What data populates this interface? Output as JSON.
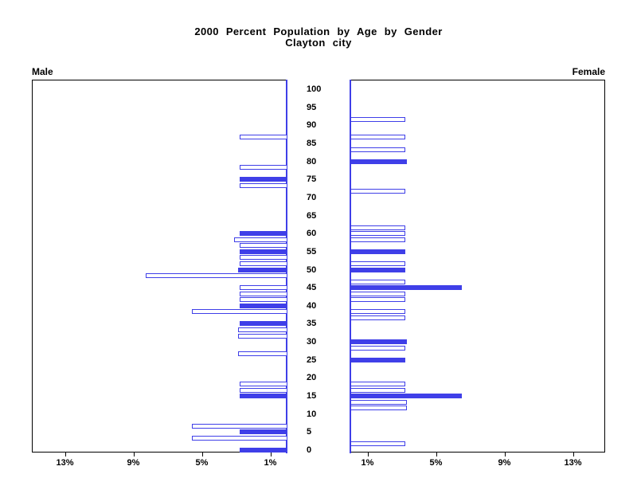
{
  "page": {
    "title": "2000 Percent Population by Age by Gender",
    "subtitle": "Clayton city",
    "left_panel_label": "Male",
    "right_panel_label": "Female"
  },
  "colors": {
    "bar_blue": "#3f3fe8",
    "axis_black": "#000000",
    "background": "#ffffff"
  },
  "chart_data": {
    "type": "bar",
    "variant": "population-pyramid",
    "title": "2000 Percent Population by Age by Gender",
    "subtitle": "Clayton city",
    "left_side_label": "Male",
    "right_side_label": "Female",
    "age_axis": {
      "position": "center",
      "ticks": [
        0,
        5,
        10,
        15,
        20,
        25,
        30,
        35,
        40,
        45,
        50,
        55,
        60,
        65,
        70,
        75,
        80,
        85,
        90,
        95,
        100
      ]
    },
    "pct_axis": {
      "male_ticks": [
        {
          "label": "13%",
          "value": 13
        },
        {
          "label": "9%",
          "value": 9
        },
        {
          "label": "5%",
          "value": 5
        },
        {
          "label": "1%",
          "value": 1
        }
      ],
      "female_ticks": [
        {
          "label": "1%",
          "value": 1
        },
        {
          "label": "5%",
          "value": 5
        },
        {
          "label": "9%",
          "value": 9
        },
        {
          "label": "13%",
          "value": 13
        }
      ],
      "male_direction": "leftward",
      "female_direction": "rightward",
      "max_pct": 14.8,
      "grid": false,
      "legend": "none visible"
    },
    "bar_styles": [
      "filled",
      "outline"
    ],
    "bars": {
      "male": [
        {
          "age": 85,
          "slot": "t",
          "style": "outline",
          "pct": 2.8
        },
        {
          "age": 80,
          "slot": "b",
          "style": "outline",
          "pct": 2.8
        },
        {
          "age": 75,
          "slot": "m",
          "style": "filled",
          "pct": 2.8
        },
        {
          "age": 75,
          "slot": "b",
          "style": "outline",
          "pct": 2.8
        },
        {
          "age": 60,
          "slot": "m",
          "style": "filled",
          "pct": 2.8
        },
        {
          "age": 60,
          "slot": "b",
          "style": "outline",
          "pct": 3.1
        },
        {
          "age": 55,
          "slot": "t",
          "style": "outline",
          "pct": 2.8
        },
        {
          "age": 55,
          "slot": "m",
          "style": "filled",
          "pct": 2.8
        },
        {
          "age": 55,
          "slot": "b",
          "style": "outline",
          "pct": 2.8
        },
        {
          "age": 50,
          "slot": "t",
          "style": "outline",
          "pct": 2.8
        },
        {
          "age": 50,
          "slot": "m",
          "style": "filled",
          "pct": 2.9
        },
        {
          "age": 50,
          "slot": "b",
          "style": "outline",
          "pct": 8.3
        },
        {
          "age": 45,
          "slot": "m",
          "style": "outline",
          "pct": 2.8
        },
        {
          "age": 45,
          "slot": "b",
          "style": "outline",
          "pct": 2.8
        },
        {
          "age": 40,
          "slot": "t",
          "style": "outline",
          "pct": 2.8
        },
        {
          "age": 40,
          "slot": "m",
          "style": "filled",
          "pct": 2.8
        },
        {
          "age": 40,
          "slot": "b",
          "style": "outline",
          "pct": 5.6
        },
        {
          "age": 35,
          "slot": "m",
          "style": "filled",
          "pct": 2.8
        },
        {
          "age": 35,
          "slot": "b",
          "style": "outline",
          "pct": 2.9
        },
        {
          "age": 30,
          "slot": "t",
          "style": "outline",
          "pct": 2.9
        },
        {
          "age": 25,
          "slot": "t",
          "style": "outline",
          "pct": 2.9
        },
        {
          "age": 20,
          "slot": "b",
          "style": "outline",
          "pct": 2.8
        },
        {
          "age": 15,
          "slot": "t",
          "style": "outline",
          "pct": 2.8
        },
        {
          "age": 15,
          "slot": "m",
          "style": "filled",
          "pct": 2.8
        },
        {
          "age": 5,
          "slot": "t",
          "style": "outline",
          "pct": 5.6
        },
        {
          "age": 5,
          "slot": "m",
          "style": "filled",
          "pct": 2.8
        },
        {
          "age": 5,
          "slot": "b",
          "style": "outline",
          "pct": 5.6
        },
        {
          "age": 0,
          "slot": "m",
          "style": "filled",
          "pct": 2.8
        }
      ],
      "female": [
        {
          "age": 90,
          "slot": "t",
          "style": "outline",
          "pct": 3.2
        },
        {
          "age": 85,
          "slot": "t",
          "style": "outline",
          "pct": 3.2
        },
        {
          "age": 85,
          "slot": "b",
          "style": "outline",
          "pct": 3.2
        },
        {
          "age": 80,
          "slot": "m",
          "style": "filled",
          "pct": 3.3
        },
        {
          "age": 70,
          "slot": "t",
          "style": "outline",
          "pct": 3.2
        },
        {
          "age": 60,
          "slot": "t",
          "style": "outline",
          "pct": 3.2
        },
        {
          "age": 60,
          "slot": "m",
          "style": "outline",
          "pct": 3.2
        },
        {
          "age": 60,
          "slot": "b",
          "style": "outline",
          "pct": 3.2
        },
        {
          "age": 55,
          "slot": "m",
          "style": "filled",
          "pct": 3.2
        },
        {
          "age": 50,
          "slot": "t",
          "style": "outline",
          "pct": 3.2
        },
        {
          "age": 50,
          "slot": "m",
          "style": "filled",
          "pct": 3.2
        },
        {
          "age": 45,
          "slot": "t",
          "style": "outline",
          "pct": 3.2
        },
        {
          "age": 45,
          "slot": "m",
          "style": "filled",
          "pct": 6.5
        },
        {
          "age": 45,
          "slot": "b",
          "style": "outline",
          "pct": 3.2
        },
        {
          "age": 40,
          "slot": "t",
          "style": "outline",
          "pct": 3.2
        },
        {
          "age": 40,
          "slot": "b",
          "style": "outline",
          "pct": 3.2
        },
        {
          "age": 35,
          "slot": "t",
          "style": "outline",
          "pct": 3.2
        },
        {
          "age": 30,
          "slot": "m",
          "style": "filled",
          "pct": 3.3
        },
        {
          "age": 30,
          "slot": "b",
          "style": "outline",
          "pct": 3.2
        },
        {
          "age": 25,
          "slot": "m",
          "style": "filled",
          "pct": 3.2
        },
        {
          "age": 20,
          "slot": "b",
          "style": "outline",
          "pct": 3.2
        },
        {
          "age": 15,
          "slot": "t",
          "style": "outline",
          "pct": 3.2
        },
        {
          "age": 15,
          "slot": "m",
          "style": "filled",
          "pct": 6.5
        },
        {
          "age": 15,
          "slot": "b",
          "style": "outline",
          "pct": 3.3
        },
        {
          "age": 10,
          "slot": "t",
          "style": "outline",
          "pct": 3.3
        },
        {
          "age": 0,
          "slot": "t",
          "style": "outline",
          "pct": 3.2
        }
      ]
    }
  }
}
